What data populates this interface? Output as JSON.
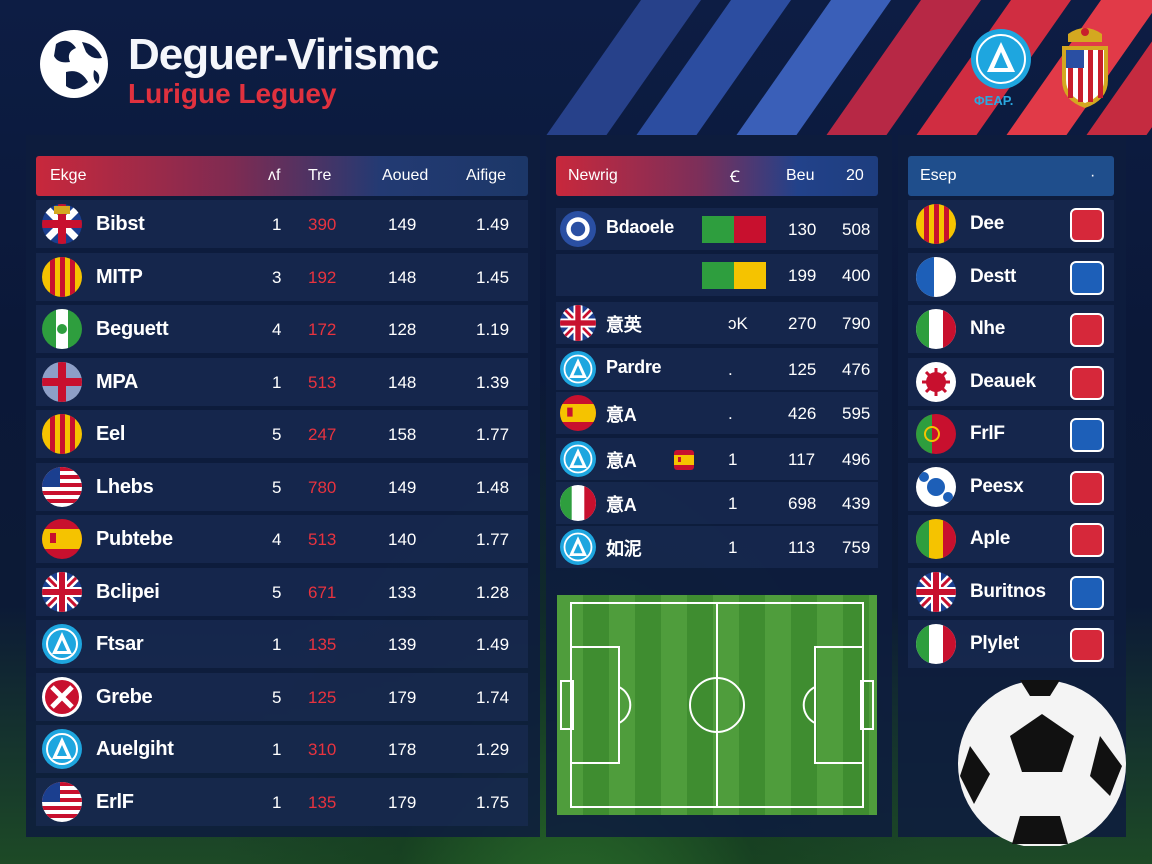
{
  "header": {
    "title": "Deguer-Virismc",
    "subtitle": "Lurigue Leguey",
    "brand_text": "ΦEAP."
  },
  "table1": {
    "headers": [
      "Ekge",
      "ᴧf",
      "Tre",
      "Aoued",
      "Aifige"
    ],
    "rows": [
      {
        "flag": "uk-crest",
        "name": "Bibst",
        "c1": "1",
        "c2": "390",
        "c3": "149",
        "c4": "1.49"
      },
      {
        "flag": "catalonia",
        "name": "MITP",
        "c1": "3",
        "c2": "192",
        "c3": "148",
        "c4": "1.45"
      },
      {
        "flag": "green-white",
        "name": "Beguett",
        "c1": "4",
        "c2": "172",
        "c3": "128",
        "c4": "1.19"
      },
      {
        "flag": "england",
        "name": "MPA",
        "c1": "1",
        "c2": "513",
        "c3": "148",
        "c4": "1.39"
      },
      {
        "flag": "catalonia",
        "name": "Eel",
        "c1": "5",
        "c2": "247",
        "c3": "158",
        "c4": "1.77"
      },
      {
        "flag": "usa",
        "name": "Lhebs",
        "c1": "5",
        "c2": "780",
        "c3": "149",
        "c4": "1.48"
      },
      {
        "flag": "spain",
        "name": "Pubtebe",
        "c1": "4",
        "c2": "513",
        "c3": "140",
        "c4": "1.77"
      },
      {
        "flag": "uk",
        "name": "Bclipei",
        "c1": "5",
        "c2": "671",
        "c3": "133",
        "c4": "1.28"
      },
      {
        "flag": "a-logo",
        "name": "Ftsar",
        "c1": "1",
        "c2": "135",
        "c3": "139",
        "c4": "1.49"
      },
      {
        "flag": "red-cross",
        "name": "Grebe",
        "c1": "5",
        "c2": "125",
        "c3": "179",
        "c4": "1.74"
      },
      {
        "flag": "a-logo",
        "name": "Auelgiht",
        "c1": "1",
        "c2": "310",
        "c3": "178",
        "c4": "1.29"
      },
      {
        "flag": "usa",
        "name": "ErlF",
        "c1": "1",
        "c2": "135",
        "c3": "179",
        "c4": "1.75"
      }
    ]
  },
  "table2": {
    "headers": [
      "Newrig",
      "Ꞓ",
      "Beu",
      "20"
    ],
    "rows": [
      {
        "flag": "blue-club",
        "name": "Bdaoele",
        "c1": "",
        "c2": "130",
        "c3": "508"
      },
      {
        "flag": "none",
        "name": "",
        "c1": "",
        "c2": "199",
        "c3": "400"
      },
      {
        "flag": "uk",
        "name": "意英",
        "c1": "ɔK",
        "c2": "270",
        "c3": "790"
      },
      {
        "flag": "a-logo",
        "name": "Pardre",
        "c1": ".",
        "c2": "125",
        "c3": "476"
      },
      {
        "flag": "spain",
        "name": "意A",
        "c1": ".",
        "c2": "426",
        "c3": "595"
      },
      {
        "flag": "a-logo",
        "name": "意A",
        "c1": "1",
        "c2": "117",
        "c3": "496"
      },
      {
        "flag": "italy",
        "name": "意A",
        "c1": "1",
        "c2": "698",
        "c3": "439"
      },
      {
        "flag": "a-logo",
        "name": "如泥",
        "c1": "1",
        "c2": "113",
        "c3": "759"
      }
    ]
  },
  "table3": {
    "headers": [
      "Esep",
      "·"
    ],
    "rows": [
      {
        "flag": "catalonia",
        "name": "Dee"
      },
      {
        "flag": "blue-white",
        "name": "Destt"
      },
      {
        "flag": "italy",
        "name": "Nhe"
      },
      {
        "flag": "red-star",
        "name": "Deauek"
      },
      {
        "flag": "portugal",
        "name": "FrlF"
      },
      {
        "flag": "blue-white-club",
        "name": "Peesx"
      },
      {
        "flag": "senegal",
        "name": "Aple"
      },
      {
        "flag": "uk",
        "name": "Buritnos"
      },
      {
        "flag": "italy",
        "name": "Plylet"
      }
    ]
  },
  "colors": {
    "accent_red": "#e0313e",
    "panel": "#0e1c3e",
    "header_blue": "#1f4e8c"
  }
}
